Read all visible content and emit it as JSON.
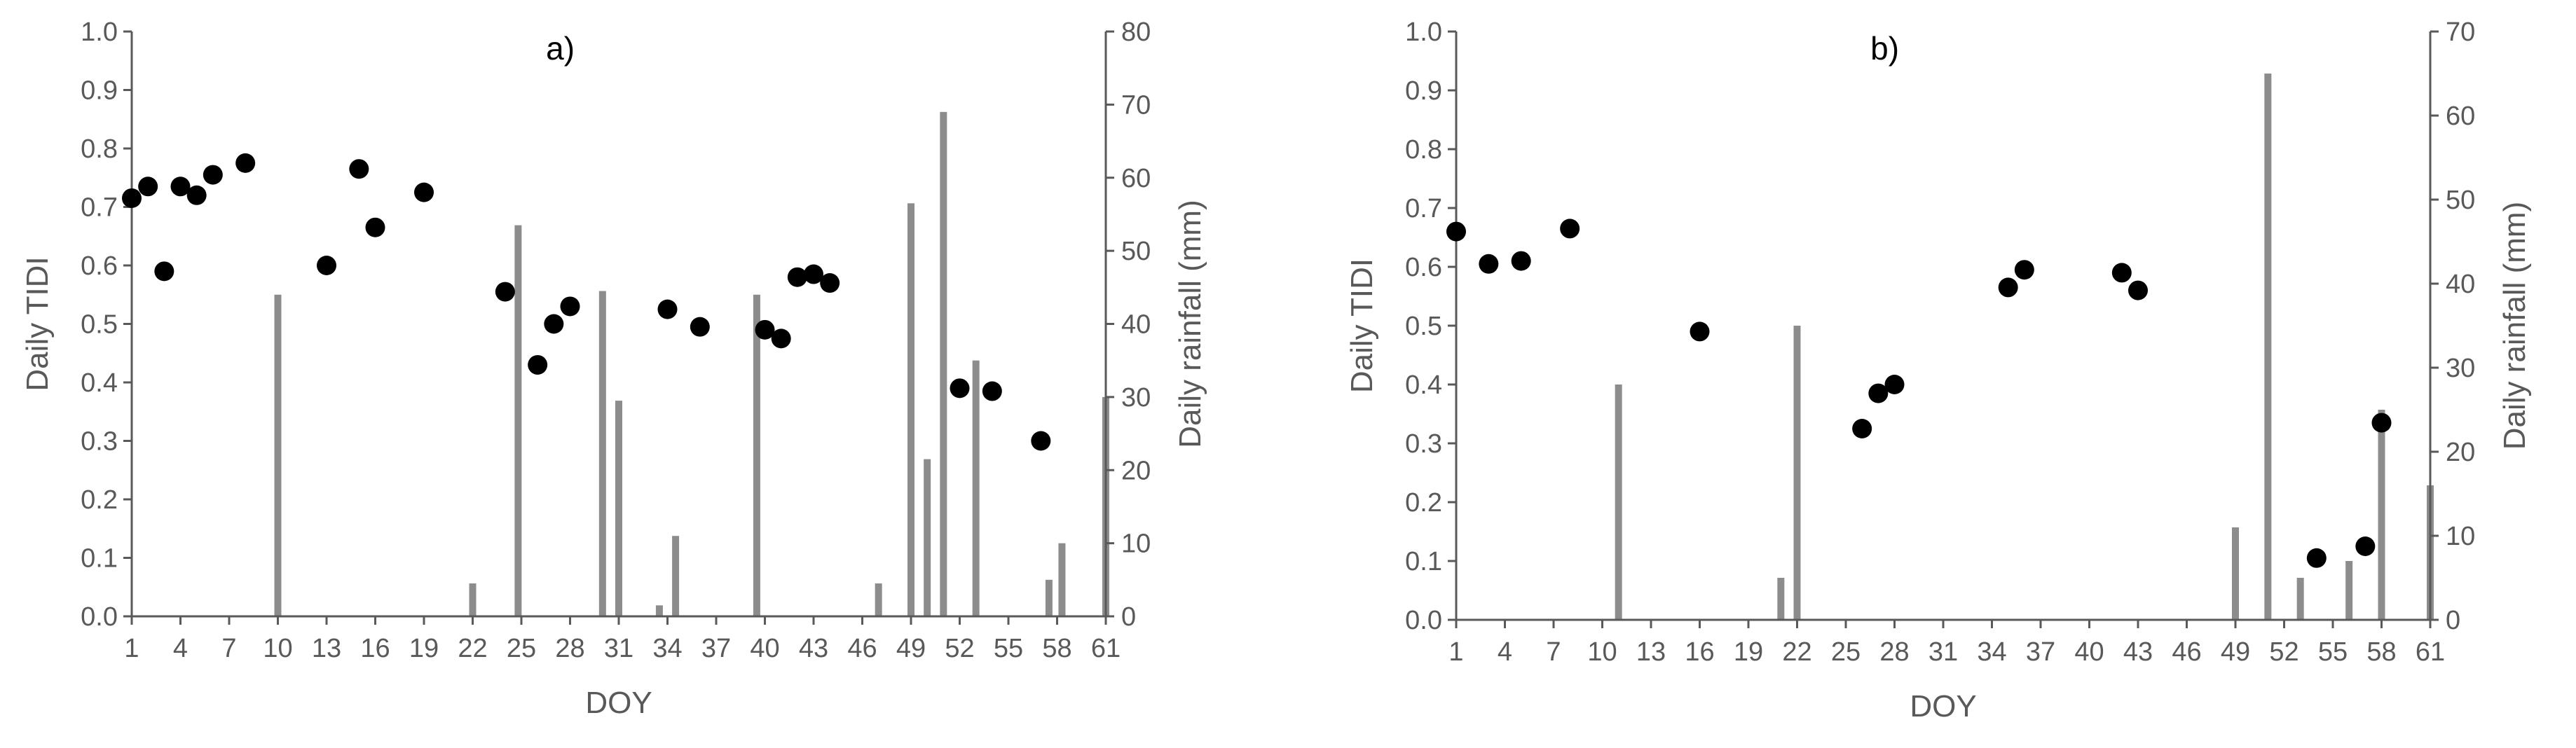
{
  "colors": {
    "bar": "#8c8c8c",
    "point": "#000000",
    "axis": "#595959",
    "background": "#ffffff"
  },
  "chart_data": [
    {
      "type": "scatter",
      "title": "a)",
      "xlabel": "DOY",
      "ylabel": "Daily TIDI",
      "y2label": "Daily rainfall (mm)",
      "xlim": [
        1,
        61
      ],
      "ylim": [
        0,
        1.0
      ],
      "y2lim": [
        0,
        80
      ],
      "x_ticks": [
        "1",
        "4",
        "7",
        "10",
        "13",
        "16",
        "19",
        "22",
        "25",
        "28",
        "31",
        "34",
        "37",
        "40",
        "43",
        "46",
        "49",
        "52",
        "55",
        "58",
        "61"
      ],
      "y_ticks": [
        "0.0",
        "0.1",
        "0.2",
        "0.3",
        "0.4",
        "0.5",
        "0.6",
        "0.7",
        "0.8",
        "0.9",
        "1.0"
      ],
      "y2_ticks": [
        "0",
        "10",
        "20",
        "30",
        "40",
        "50",
        "60",
        "70",
        "80"
      ],
      "grid": false,
      "series": [
        {
          "kind": "scatter",
          "axis": "left",
          "x": [
            1,
            2,
            3,
            4,
            5,
            6,
            8,
            13,
            15,
            16,
            19,
            24,
            26,
            27,
            28,
            34,
            36,
            40,
            41,
            42,
            43,
            44,
            52,
            54,
            57
          ],
          "y": [
            0.715,
            0.735,
            0.59,
            0.735,
            0.72,
            0.755,
            0.775,
            0.6,
            0.765,
            0.665,
            0.725,
            0.555,
            0.43,
            0.5,
            0.53,
            0.525,
            0.495,
            0.49,
            0.475,
            0.58,
            0.585,
            0.57,
            0.39,
            0.385,
            0.3
          ]
        },
        {
          "kind": "bar",
          "axis": "right",
          "x": [
            10,
            22,
            24.8,
            30,
            31,
            33.5,
            34.5,
            39.5,
            47,
            49,
            50,
            51,
            53,
            57.5,
            58.3,
            61
          ],
          "y": [
            44,
            4.5,
            53.5,
            44.5,
            29.5,
            1.5,
            11,
            44,
            4.5,
            56.5,
            21.5,
            69,
            35,
            5,
            10,
            30
          ]
        }
      ]
    },
    {
      "type": "scatter",
      "title": "b)",
      "xlabel": "DOY",
      "ylabel": "Daily TIDI",
      "y2label": "Daily rainfall (mm)",
      "xlim": [
        1,
        61
      ],
      "ylim": [
        0,
        1.0
      ],
      "y2lim": [
        0,
        70
      ],
      "x_ticks": [
        "1",
        "4",
        "7",
        "10",
        "13",
        "16",
        "19",
        "22",
        "25",
        "28",
        "31",
        "34",
        "37",
        "40",
        "43",
        "46",
        "49",
        "52",
        "55",
        "58",
        "61"
      ],
      "y_ticks": [
        "0.0",
        "0.1",
        "0.2",
        "0.3",
        "0.4",
        "0.5",
        "0.6",
        "0.7",
        "0.8",
        "0.9",
        "1.0"
      ],
      "y2_ticks": [
        "0",
        "10",
        "20",
        "30",
        "40",
        "50",
        "60",
        "70"
      ],
      "grid": false,
      "series": [
        {
          "kind": "scatter",
          "axis": "left",
          "x": [
            1,
            3,
            5,
            8,
            16,
            26,
            27,
            28,
            35,
            36,
            42,
            43,
            54,
            57,
            58
          ],
          "y": [
            0.66,
            0.605,
            0.61,
            0.665,
            0.49,
            0.325,
            0.385,
            0.4,
            0.565,
            0.595,
            0.59,
            0.56,
            0.105,
            0.125,
            0.335
          ]
        },
        {
          "kind": "bar",
          "axis": "right",
          "x": [
            11,
            21,
            22,
            49,
            51,
            53,
            56,
            58,
            61
          ],
          "y": [
            28,
            5,
            35,
            11,
            65,
            5,
            7,
            25,
            16
          ]
        }
      ]
    }
  ]
}
